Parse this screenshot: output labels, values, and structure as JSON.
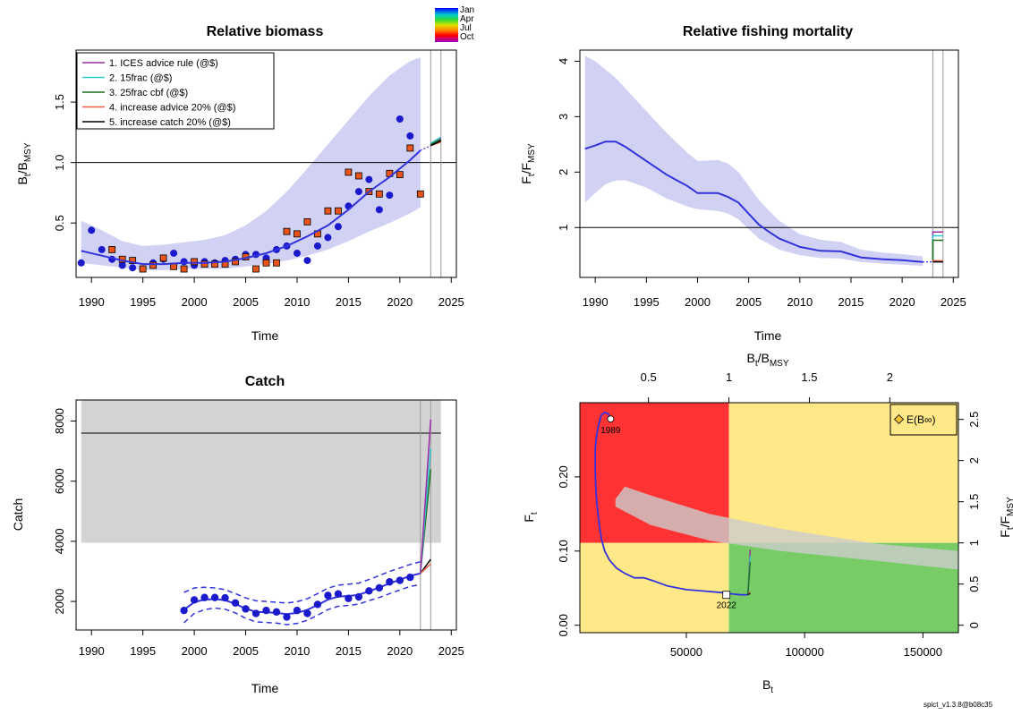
{
  "colors": {
    "ci_fill": "#c9c9f2",
    "line": "#3333dd",
    "points_index1": "#1a1acc",
    "points_index2": "#e8541a",
    "ices": "#9b2aa6",
    "frac15": "#2ec9c9",
    "cbf25": "#1a6e1a",
    "inc_adv": "#f06040",
    "inc_catch": "#000000",
    "kobe_red": "#ff3333",
    "kobe_yellow": "#ffe888",
    "kobe_green": "#77cc66",
    "catch_band": "#d3d3d3"
  },
  "version_label": "spict_v1.3.8@b08c35",
  "season_legend": {
    "labels": [
      "Jan",
      "Apr",
      "Jul",
      "Oct"
    ]
  },
  "chart_data": [
    {
      "id": "biomass",
      "type": "line",
      "title": "Relative biomass",
      "ylabel": "Bt/BMSY",
      "xlabel": "Time",
      "xlim": [
        1988.5,
        2025.5
      ],
      "ylim": [
        0.05,
        1.93
      ],
      "xticks": [
        1990,
        1995,
        2000,
        2005,
        2010,
        2015,
        2020,
        2025
      ],
      "yticks": [
        0.5,
        1.0,
        1.5
      ],
      "ytick_labels": [
        "0.5",
        "1.0",
        "1.5"
      ],
      "reference_line": 1.0,
      "vlines": [
        2023,
        2024
      ],
      "estimate": {
        "x": [
          1989,
          1991,
          1993,
          1995,
          1997,
          1999,
          2001,
          2003,
          2005,
          2007,
          2009,
          2011,
          2013,
          2015,
          2017,
          2019,
          2021,
          2022
        ],
        "y": [
          0.27,
          0.23,
          0.19,
          0.16,
          0.16,
          0.17,
          0.17,
          0.18,
          0.21,
          0.25,
          0.31,
          0.39,
          0.48,
          0.61,
          0.76,
          0.88,
          1.02,
          1.1
        ]
      },
      "ci": {
        "x": [
          1989,
          1991,
          1993,
          1995,
          1997,
          1999,
          2001,
          2003,
          2005,
          2007,
          2009,
          2011,
          2013,
          2015,
          2017,
          2019,
          2021,
          2022
        ],
        "lower": [
          0.17,
          0.15,
          0.13,
          0.11,
          0.11,
          0.12,
          0.12,
          0.12,
          0.14,
          0.16,
          0.19,
          0.23,
          0.28,
          0.35,
          0.43,
          0.5,
          0.58,
          0.63
        ],
        "upper": [
          0.52,
          0.44,
          0.35,
          0.31,
          0.32,
          0.34,
          0.36,
          0.4,
          0.48,
          0.6,
          0.76,
          0.95,
          1.15,
          1.35,
          1.55,
          1.72,
          1.84,
          1.87
        ]
      },
      "index1": {
        "x": [
          1989,
          1990,
          1991,
          1992,
          1993,
          1994,
          1995,
          1996,
          1997,
          1998,
          1999,
          2000,
          2001,
          2002,
          2003,
          2004,
          2005,
          2006,
          2007,
          2008,
          2009,
          2010,
          2011,
          2012,
          2013,
          2014,
          2015,
          2016,
          2017,
          2018,
          2019,
          2020,
          2021
        ],
        "y": [
          0.17,
          0.44,
          0.28,
          0.2,
          0.15,
          0.13,
          0.12,
          0.17,
          0.2,
          0.25,
          0.18,
          0.15,
          0.18,
          0.17,
          0.19,
          0.2,
          0.24,
          0.24,
          0.21,
          0.28,
          0.31,
          0.25,
          0.19,
          0.31,
          0.38,
          0.47,
          0.64,
          0.76,
          0.86,
          0.61,
          0.73,
          1.36,
          1.22
        ]
      },
      "index2": {
        "x": [
          1992,
          1993,
          1994,
          1995,
          1996,
          1997,
          1998,
          1999,
          2000,
          2001,
          2002,
          2003,
          2004,
          2005,
          2006,
          2007,
          2008,
          2009,
          2010,
          2011,
          2012,
          2013,
          2014,
          2015,
          2016,
          2017,
          2018,
          2019,
          2020,
          2021,
          2022
        ],
        "y": [
          0.28,
          0.2,
          0.19,
          0.12,
          0.15,
          0.21,
          0.14,
          0.12,
          0.18,
          0.16,
          0.16,
          0.16,
          0.18,
          0.22,
          0.12,
          0.17,
          0.17,
          0.43,
          0.41,
          0.51,
          0.41,
          0.6,
          0.6,
          0.92,
          0.89,
          0.76,
          0.74,
          0.91,
          0.9,
          1.12,
          0.74
        ]
      },
      "scenarios": [
        {
          "name": "1. ICES advice rule (@$)",
          "color_key": "ices",
          "y2023": 1.15,
          "y2024": 1.2
        },
        {
          "name": "2. 15frac (@$)",
          "color_key": "frac15",
          "y2023": 1.16,
          "y2024": 1.21
        },
        {
          "name": "3. 25frac cbf (@$)",
          "color_key": "cbf25",
          "y2023": 1.15,
          "y2024": 1.19
        },
        {
          "name": "4. increase advice 20% (@$)",
          "color_key": "inc_adv",
          "y2023": 1.14,
          "y2024": 1.17
        },
        {
          "name": "5. increase catch 20% (@$)",
          "color_key": "inc_catch",
          "y2023": 1.14,
          "y2024": 1.18
        }
      ]
    },
    {
      "id": "fishing",
      "type": "line",
      "title": "Relative fishing mortality",
      "ylabel": "Ft/FMSY",
      "xlabel": "Time",
      "xlim": [
        1988.5,
        2025.5
      ],
      "ylim": [
        0.1,
        4.2
      ],
      "xticks": [
        1990,
        1995,
        2000,
        2005,
        2010,
        2015,
        2020,
        2025
      ],
      "yticks": [
        1,
        2,
        3,
        4
      ],
      "ytick_labels": [
        "1",
        "2",
        "3",
        "4"
      ],
      "reference_line": 1.0,
      "vlines": [
        2023,
        2024
      ],
      "estimate": {
        "x": [
          1989,
          1990,
          1991,
          1992,
          1993,
          1995,
          1997,
          1999,
          2000,
          2002,
          2003,
          2004,
          2005,
          2006,
          2007,
          2008,
          2010,
          2012,
          2014,
          2016,
          2018,
          2020,
          2022
        ],
        "y": [
          2.42,
          2.48,
          2.55,
          2.55,
          2.45,
          2.2,
          1.95,
          1.75,
          1.62,
          1.62,
          1.55,
          1.45,
          1.25,
          1.05,
          0.92,
          0.8,
          0.65,
          0.58,
          0.57,
          0.46,
          0.43,
          0.41,
          0.38
        ]
      },
      "ci": {
        "x": [
          1989,
          1990,
          1991,
          1992,
          1993,
          1995,
          1997,
          1999,
          2000,
          2002,
          2003,
          2004,
          2005,
          2006,
          2007,
          2008,
          2010,
          2012,
          2014,
          2016,
          2018,
          2020,
          2022
        ],
        "lower": [
          1.45,
          1.62,
          1.78,
          1.85,
          1.85,
          1.72,
          1.52,
          1.38,
          1.33,
          1.3,
          1.25,
          1.15,
          0.97,
          0.8,
          0.7,
          0.6,
          0.5,
          0.45,
          0.44,
          0.38,
          0.35,
          0.33,
          0.31
        ],
        "upper": [
          4.1,
          4.0,
          3.85,
          3.7,
          3.5,
          3.1,
          2.7,
          2.35,
          2.2,
          2.22,
          2.15,
          2.0,
          1.75,
          1.5,
          1.3,
          1.12,
          0.88,
          0.78,
          0.74,
          0.6,
          0.55,
          0.52,
          0.48
        ]
      },
      "scenarios": [
        {
          "color_key": "ices",
          "y2023": 0.38,
          "y2024": 0.92
        },
        {
          "color_key": "frac15",
          "y2023": 0.38,
          "y2024": 0.85
        },
        {
          "color_key": "cbf25",
          "y2023": 0.38,
          "y2024": 0.77
        },
        {
          "color_key": "inc_adv",
          "y2023": 0.38,
          "y2024": 0.4
        },
        {
          "color_key": "inc_catch",
          "y2023": 0.38,
          "y2024": 0.38
        }
      ]
    },
    {
      "id": "catch",
      "type": "line",
      "title": "Catch",
      "ylabel": "Catch",
      "xlabel": "Time",
      "xlim": [
        1988.5,
        2025.5
      ],
      "ylim": [
        1050,
        8700
      ],
      "xticks": [
        1990,
        1995,
        2000,
        2005,
        2010,
        2015,
        2020,
        2025
      ],
      "yticks": [
        2000,
        4000,
        6000,
        8000
      ],
      "ytick_labels": [
        "2000",
        "4000",
        "6000",
        "8000"
      ],
      "band": {
        "x0": 1989,
        "x1": 2024,
        "y0": 3950,
        "y1": 8700
      },
      "reference_line": 7600,
      "vlines": [
        2022,
        2023
      ],
      "observed": {
        "x": [
          1999,
          2000,
          2001,
          2002,
          2003,
          2004,
          2005,
          2006,
          2007,
          2008,
          2009,
          2010,
          2011,
          2012,
          2013,
          2014,
          2015,
          2016,
          2017,
          2018,
          2019,
          2020,
          2021
        ],
        "y": [
          1700,
          2050,
          2130,
          2130,
          2120,
          1950,
          1750,
          1600,
          1700,
          1650,
          1480,
          1700,
          1600,
          1900,
          2200,
          2250,
          2100,
          2150,
          2350,
          2450,
          2650,
          2700,
          2800
        ]
      },
      "fitted": {
        "x": [
          1999,
          2000,
          2001,
          2002,
          2003,
          2004,
          2005,
          2006,
          2007,
          2008,
          2009,
          2010,
          2011,
          2012,
          2013,
          2014,
          2015,
          2016,
          2017,
          2018,
          2019,
          2020,
          2021,
          2022
        ],
        "y": [
          1720,
          1980,
          2060,
          2080,
          2040,
          1920,
          1760,
          1650,
          1640,
          1620,
          1580,
          1620,
          1720,
          1880,
          2060,
          2160,
          2180,
          2220,
          2340,
          2460,
          2600,
          2720,
          2850,
          2930
        ]
      },
      "fitted_lower": [
        1290,
        1600,
        1730,
        1780,
        1740,
        1620,
        1440,
        1320,
        1300,
        1280,
        1230,
        1270,
        1370,
        1540,
        1730,
        1840,
        1870,
        1910,
        2030,
        2130,
        2260,
        2380,
        2500,
        2560
      ],
      "fitted_upper": [
        2300,
        2450,
        2470,
        2450,
        2390,
        2260,
        2120,
        2020,
        2000,
        1970,
        1950,
        1990,
        2090,
        2260,
        2440,
        2540,
        2570,
        2610,
        2730,
        2860,
        3000,
        3110,
        3230,
        3320
      ],
      "scenarios": [
        {
          "color_key": "inc_catch",
          "y2022": 2930,
          "y2023": 3400
        },
        {
          "color_key": "inc_adv",
          "y2022": 2930,
          "y2023": 3250
        },
        {
          "color_key": "cbf25",
          "y2022": 2930,
          "y2023": 6400
        },
        {
          "color_key": "frac15",
          "y2022": 2930,
          "y2023": 7100
        },
        {
          "color_key": "ices",
          "y2022": 2930,
          "y2023": 8050
        }
      ]
    },
    {
      "id": "kobe",
      "type": "line",
      "xlabel": "Bt",
      "ylabel": "Ft",
      "top_label": "Bt/BMSY",
      "right_label": "Ft/FMSY",
      "xlim": [
        5000,
        165000
      ],
      "ylim": [
        -0.01,
        0.3
      ],
      "bmsy": 68000,
      "fmsy": 0.111,
      "xticks": [
        50000,
        100000,
        150000
      ],
      "xtick_labels": [
        "50000",
        "100000",
        "150000"
      ],
      "yticks": [
        0.0,
        0.1,
        0.2
      ],
      "ytick_labels": [
        "0.00",
        "0.10",
        "0.20"
      ],
      "top_ticks": [
        0.5,
        1.0,
        1.5,
        2.0
      ],
      "top_tick_labels": [
        "0.5",
        "1",
        "1.5",
        "2"
      ],
      "right_ticks": [
        0,
        0.5,
        1,
        1.5,
        2,
        2.5
      ],
      "right_tick_labels": [
        "0",
        "0.5",
        "1",
        "1.5",
        "2",
        "2.5"
      ],
      "legend_entry": "E(B∞)",
      "start_label": "1989",
      "end_label": "2022",
      "trajectory": {
        "x": [
          18000,
          17000,
          15500,
          14000,
          12500,
          11500,
          11500,
          11800,
          12300,
          13200,
          14200,
          15500,
          17500,
          20500,
          24000,
          28000,
          32000,
          36000,
          42000,
          50000,
          58000,
          65000,
          70000,
          73000,
          76000
        ],
        "y": [
          0.278,
          0.285,
          0.287,
          0.283,
          0.265,
          0.24,
          0.205,
          0.18,
          0.16,
          0.135,
          0.115,
          0.1,
          0.088,
          0.077,
          0.07,
          0.064,
          0.064,
          0.06,
          0.053,
          0.048,
          0.046,
          0.044,
          0.042,
          0.041,
          0.041
        ]
      },
      "ellipse_ci": {
        "x": [
          20000,
          24000,
          35000,
          60000,
          90000,
          130000,
          165000,
          165000,
          130000,
          90000,
          60000,
          35000,
          26000,
          20000
        ],
        "upper": [
          0.17,
          0.187,
          0.175,
          0.15,
          0.13,
          0.11,
          0.1,
          0.075,
          0.087,
          0.1,
          0.114,
          0.135,
          0.15,
          0.16
        ]
      },
      "scenarios": [
        {
          "color_key": "ices",
          "bx": 77000,
          "fy": 0.102
        },
        {
          "color_key": "frac15",
          "bx": 77000,
          "fy": 0.093
        },
        {
          "color_key": "cbf25",
          "bx": 77000,
          "fy": 0.085
        },
        {
          "color_key": "inc_adv",
          "bx": 77000,
          "fy": 0.045
        },
        {
          "color_key": "inc_catch",
          "bx": 77000,
          "fy": 0.043
        }
      ]
    }
  ]
}
